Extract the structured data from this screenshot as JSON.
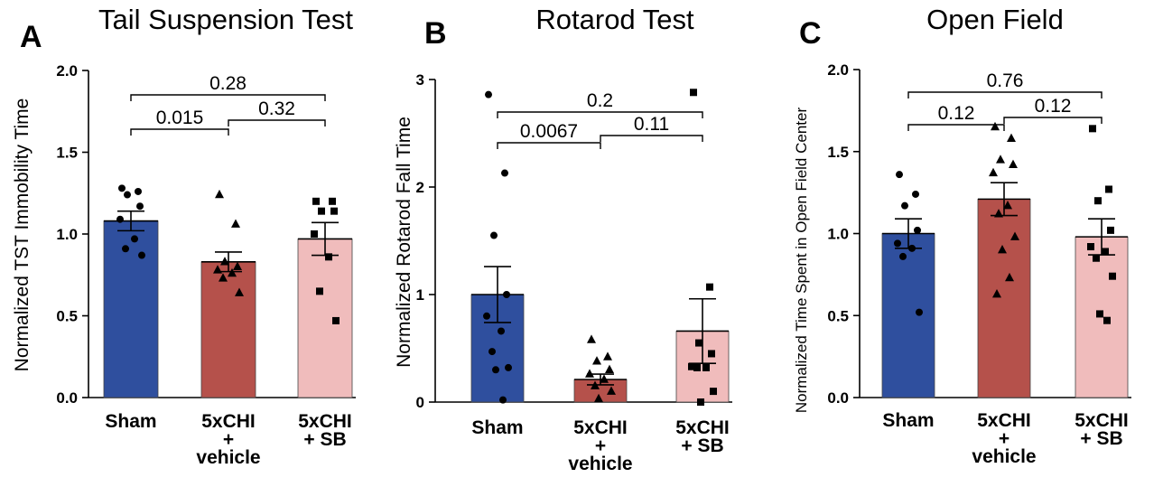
{
  "chart_data": [
    {
      "type": "bar",
      "panel": "A",
      "title": "Tail Suspension Test",
      "ylabel": "Normalized TST Immobility Time",
      "ylim": [
        0,
        2.0
      ],
      "yticks": [
        "0.0",
        "0.5",
        "1.0",
        "1.5",
        "2.0"
      ],
      "categories": [
        [
          "Sham"
        ],
        [
          "5xCHI",
          "+",
          "vehicle"
        ],
        [
          "5xCHI",
          "+ SB"
        ]
      ],
      "colors": [
        "#2f4f9e",
        "#b5514b",
        "#f0bcbc"
      ],
      "markers": [
        "circle",
        "triangle",
        "square"
      ],
      "means": [
        1.08,
        0.83,
        0.97
      ],
      "sem": [
        0.06,
        0.06,
        0.1
      ],
      "points": [
        [
          1.28,
          1.26,
          1.24,
          1.17,
          1.09,
          0.97,
          0.91,
          0.87
        ],
        [
          1.24,
          1.06,
          0.83,
          0.8,
          0.78,
          0.76,
          0.73,
          0.64
        ],
        [
          1.2,
          1.2,
          1.14,
          1.14,
          1.0,
          0.86,
          0.65,
          0.47
        ]
      ],
      "comparisons": [
        {
          "from": 0,
          "to": 1,
          "p": "0.015"
        },
        {
          "from": 1,
          "to": 2,
          "p": "0.32"
        },
        {
          "from": 0,
          "to": 2,
          "p": "0.28"
        }
      ]
    },
    {
      "type": "bar",
      "panel": "B",
      "title": "Rotarod Test",
      "ylabel": "Normalized Rotarod Fall Time",
      "ylim": [
        0,
        3
      ],
      "yticks": [
        "0",
        "1",
        "2",
        "3"
      ],
      "categories": [
        [
          "Sham"
        ],
        [
          "5xCHI",
          "+",
          "vehicle"
        ],
        [
          "5xCHI",
          "+ SB"
        ]
      ],
      "colors": [
        "#2f4f9e",
        "#b5514b",
        "#f0bcbc"
      ],
      "markers": [
        "circle",
        "triangle",
        "square"
      ],
      "means": [
        1.0,
        0.21,
        0.66
      ],
      "sem": [
        0.26,
        0.05,
        0.3
      ],
      "points": [
        [
          2.86,
          2.13,
          1.55,
          1.0,
          0.8,
          0.66,
          0.47,
          0.32,
          0.3,
          0.02
        ],
        [
          0.58,
          0.42,
          0.38,
          0.3,
          0.26,
          0.21,
          0.15,
          0.1,
          0.03
        ],
        [
          2.88,
          1.07,
          0.55,
          0.45,
          0.33,
          0.32,
          0.32,
          0.1,
          0.0
        ]
      ],
      "comparisons": [
        {
          "from": 0,
          "to": 1,
          "p": "0.0067"
        },
        {
          "from": 1,
          "to": 2,
          "p": "0.11"
        },
        {
          "from": 0,
          "to": 2,
          "p": "0.2"
        }
      ]
    },
    {
      "type": "bar",
      "panel": "C",
      "title": "Open Field",
      "ylabel": "Normalized Time Spent in Open Field Center",
      "ylim": [
        0,
        2.0
      ],
      "yticks": [
        "0.0",
        "0.5",
        "1.0",
        "1.5",
        "2.0"
      ],
      "categories": [
        [
          "Sham"
        ],
        [
          "5xCHI",
          "+",
          "vehicle"
        ],
        [
          "5xCHI",
          "+ SB"
        ]
      ],
      "colors": [
        "#2f4f9e",
        "#b5514b",
        "#f0bcbc"
      ],
      "markers": [
        "circle",
        "triangle",
        "square"
      ],
      "means": [
        1.0,
        1.21,
        0.98
      ],
      "sem": [
        0.09,
        0.1,
        0.11
      ],
      "points": [
        [
          1.36,
          1.24,
          1.17,
          1.02,
          0.94,
          0.91,
          0.86,
          0.52
        ],
        [
          1.65,
          1.58,
          1.45,
          1.42,
          1.37,
          1.17,
          1.12,
          0.98,
          0.9,
          0.73,
          0.63
        ],
        [
          1.64,
          1.27,
          1.2,
          1.02,
          0.92,
          0.89,
          0.85,
          0.74,
          0.51,
          0.47
        ]
      ],
      "comparisons": [
        {
          "from": 0,
          "to": 1,
          "p": "0.12"
        },
        {
          "from": 1,
          "to": 2,
          "p": "0.12"
        },
        {
          "from": 0,
          "to": 2,
          "p": "0.76"
        }
      ]
    }
  ]
}
